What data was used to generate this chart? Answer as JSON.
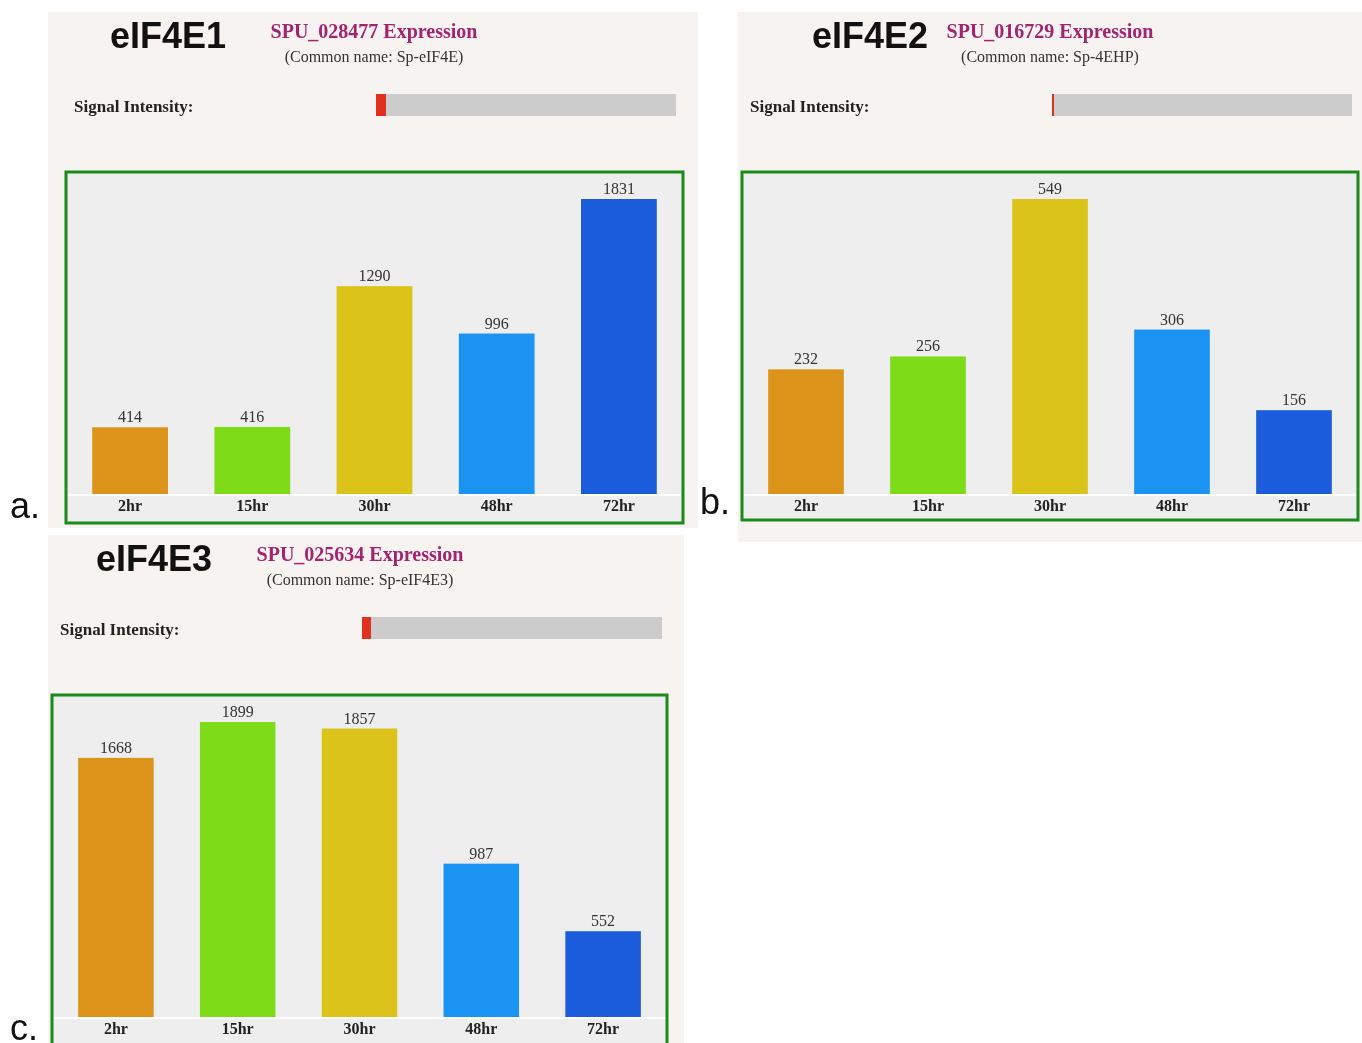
{
  "chart_data": [
    {
      "type": "bar",
      "title": "eIF4E1",
      "subtitle": "SPU_028477 Expression",
      "annotations": [
        "(Common name: Sp-eIF4E)",
        "Signal Intensity:",
        "a."
      ],
      "categories": [
        "2hr",
        "15hr",
        "30hr",
        "48hr",
        "72hr"
      ],
      "values": [
        414,
        416,
        1290,
        996,
        1831
      ],
      "colors": [
        "#db931a",
        "#7edb18",
        "#dbc31a",
        "#1a93f2",
        "#1a5cdb"
      ],
      "data_labels": true
    },
    {
      "type": "bar",
      "title": "eIF4E2",
      "subtitle": "SPU_016729 Expression",
      "annotations": [
        "(Common name: Sp-4EHP)",
        "Signal Intensity:",
        "b."
      ],
      "categories": [
        "2hr",
        "15hr",
        "30hr",
        "48hr",
        "72hr"
      ],
      "values": [
        232,
        256,
        549,
        306,
        156
      ],
      "colors": [
        "#db931a",
        "#7edb18",
        "#dbc31a",
        "#1a93f2",
        "#1a5cdb"
      ],
      "data_labels": true
    },
    {
      "type": "bar",
      "title": "eIF4E3",
      "subtitle": "SPU_025634 Expression",
      "annotations": [
        "(Common name: Sp-eIF4E3)",
        "Signal Intensity:",
        "c."
      ],
      "categories": [
        "2hr",
        "15hr",
        "30hr",
        "48hr",
        "72hr"
      ],
      "values": [
        1668,
        1899,
        1857,
        987,
        552
      ],
      "colors": [
        "#db931a",
        "#7edb18",
        "#dbc31a",
        "#1a93f2",
        "#1a5cdb"
      ],
      "data_labels": true
    }
  ]
}
